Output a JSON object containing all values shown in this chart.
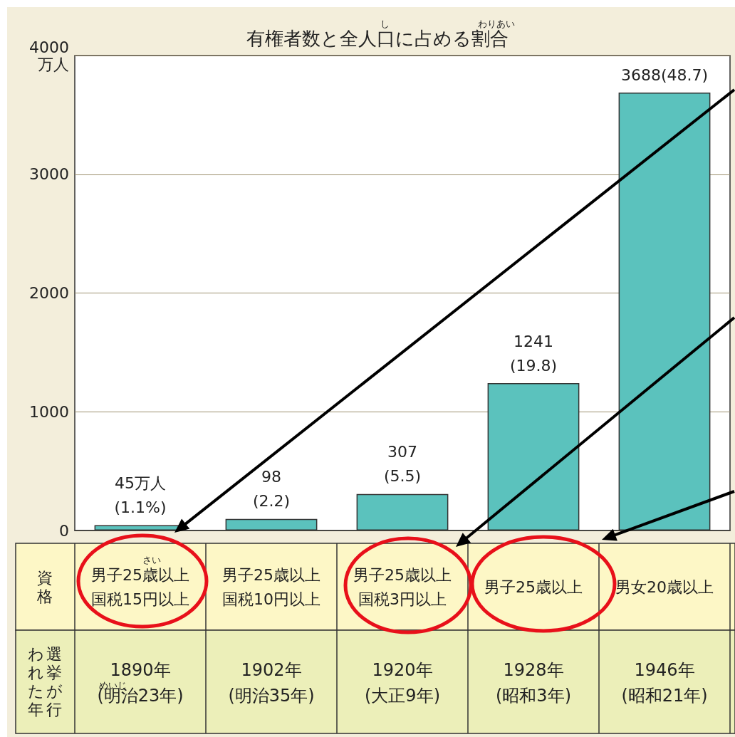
{
  "chart_data": {
    "type": "bar",
    "title": "有権者数と全人口に占める割合",
    "categories": [
      "1890年\n(明治23年)",
      "1902年\n(明治35年)",
      "1920年\n(大正9年)",
      "1928年\n(昭和3年)",
      "1946年\n(昭和21年)"
    ],
    "values": [
      45,
      98,
      307,
      1241,
      3688
    ],
    "value_labels": [
      "45万人\n(1.1%)",
      "98\n(2.2)",
      "307\n(5.5)",
      "1241\n(19.8)",
      "3688(48.7)"
    ],
    "color": "#5bc2bd",
    "ylim": [
      0,
      4000
    ],
    "yticks": [
      0,
      1000,
      2000,
      3000,
      {
        "value": 4000,
        "label": "4000\n万人"
      }
    ],
    "grid": "y",
    "annotations": [
      "資格",
      "選挙が行われた年",
      "男子25歳以上国税15円以上",
      "男子25歳以上国税10円以上",
      "男子25歳以上国税3円以上",
      "男子25歳以上",
      "男女20歳以上",
      "し",
      "わりあい",
      "さい",
      "めいじ"
    ]
  }
}
